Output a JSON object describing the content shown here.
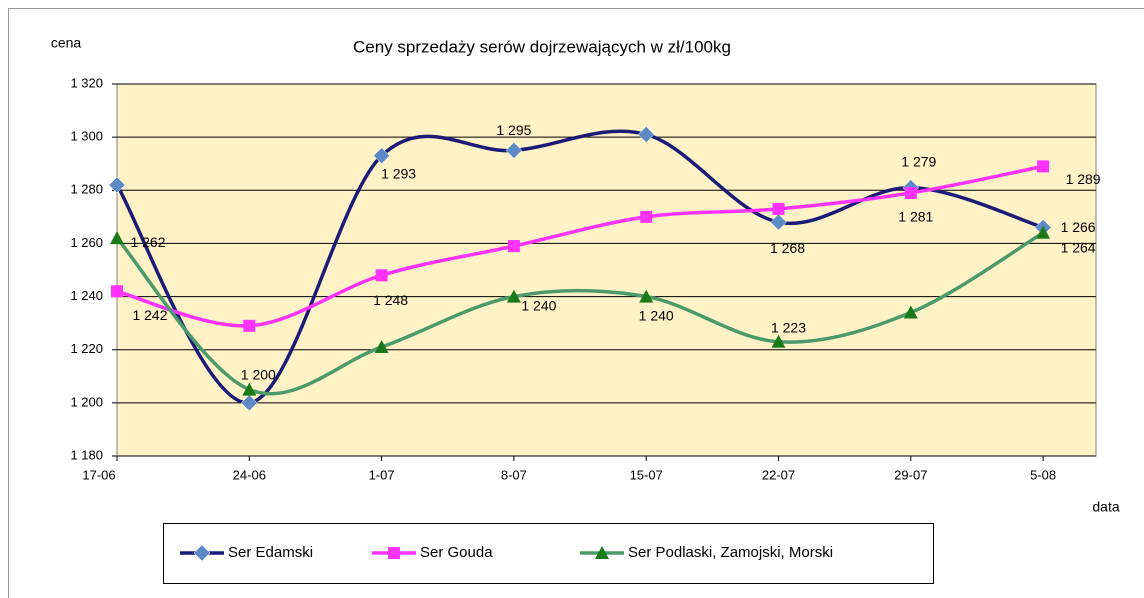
{
  "chart_data": {
    "type": "line",
    "title": "Ceny sprzedaży serów dojrzewających w zł/100kg",
    "y_label": "cena",
    "x_label": "data",
    "categories": [
      "17-06",
      "24-06",
      "1-07",
      "8-07",
      "15-07",
      "22-07",
      "29-07",
      "5-08"
    ],
    "ylim": [
      1180,
      1320
    ],
    "yticks": [
      {
        "value": 1180,
        "label": "1 180"
      },
      {
        "value": 1200,
        "label": "1 200"
      },
      {
        "value": 1220,
        "label": "1 220"
      },
      {
        "value": 1240,
        "label": "1 240"
      },
      {
        "value": 1260,
        "label": "1 260"
      },
      {
        "value": 1280,
        "label": "1 280"
      },
      {
        "value": 1300,
        "label": "1 300"
      },
      {
        "value": 1320,
        "label": "1 320"
      }
    ],
    "grid": true,
    "legend": "bottom",
    "smooth": true,
    "background": "#fff2c6",
    "series": [
      {
        "name": "Ser Edamski",
        "color": "#1c1c78",
        "marker_color": "#5b8ac6",
        "marker": "diamond",
        "values": [
          1282,
          1200,
          1293,
          1295,
          1301,
          1268,
          1281,
          1266
        ],
        "value_labels": [
          null,
          "1 200",
          "1 293",
          "1 295",
          null,
          "1 268",
          "1 281",
          "1 266"
        ]
      },
      {
        "name": "Ser Gouda",
        "color": "#ff33ff",
        "marker_color": "#ff33ff",
        "marker": "square",
        "values": [
          1242,
          1229,
          1248,
          1259,
          1270,
          1273,
          1279,
          1289
        ],
        "value_labels": [
          "1 242",
          null,
          "1 248",
          null,
          null,
          null,
          "1 279",
          "1 289"
        ]
      },
      {
        "name": "Ser Podlaski, Zamojski, Morski",
        "color": "#4a9a6a",
        "marker_color": "#1a7a1a",
        "marker": "triangle",
        "values": [
          1262,
          1205,
          1221,
          1240,
          1240,
          1223,
          1234,
          1264
        ],
        "value_labels": [
          "1 262",
          null,
          null,
          "1 240",
          "1 240",
          "1 223",
          null,
          "1 264"
        ]
      }
    ]
  }
}
